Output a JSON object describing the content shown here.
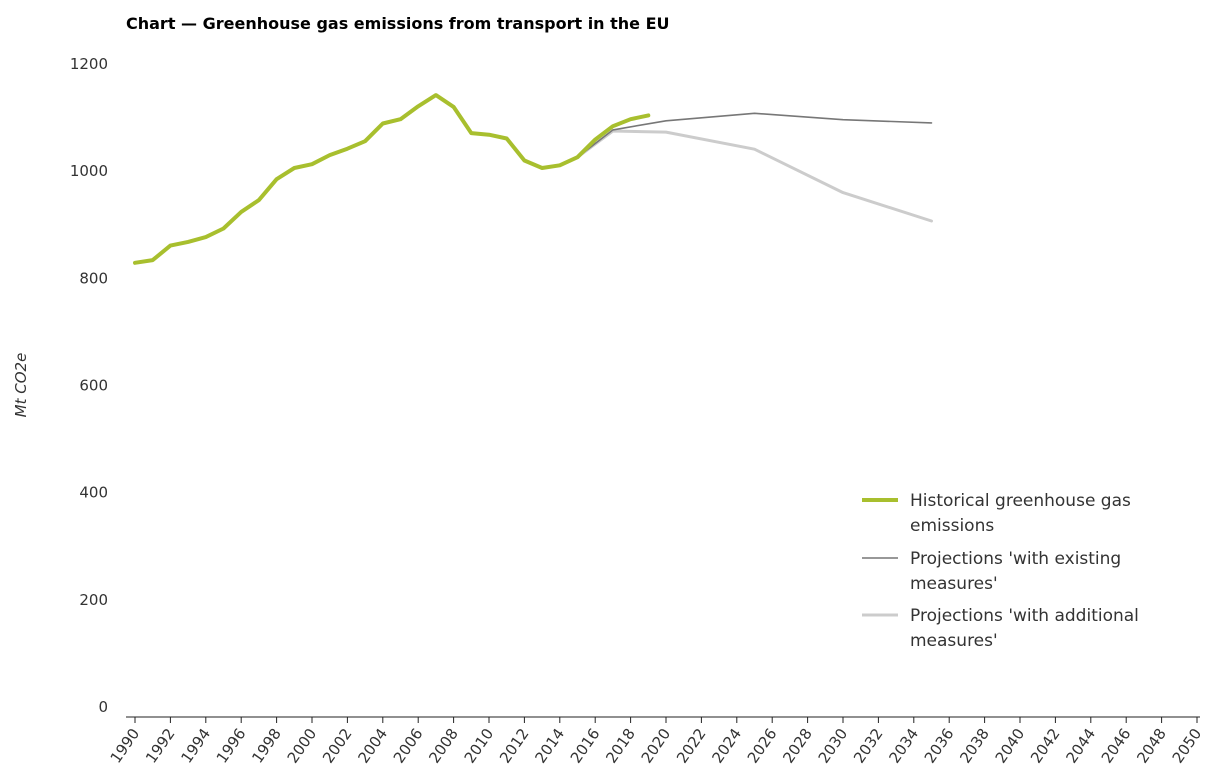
{
  "title": "Chart — Greenhouse gas emissions from transport in the EU",
  "chart_data": {
    "type": "line",
    "title": "Chart — Greenhouse gas emissions from transport in the EU",
    "xlabel": "",
    "ylabel": "Mt CO2e",
    "xlim": [
      1990,
      2050
    ],
    "ylim": [
      0,
      1200
    ],
    "y_ticks": [
      0,
      200,
      400,
      600,
      800,
      1000,
      1200
    ],
    "x_ticks": [
      "1990",
      "1992",
      "1994",
      "1996",
      "1998",
      "2000",
      "2002",
      "2004",
      "2006",
      "2008",
      "2010",
      "2012",
      "2014",
      "2016",
      "2018",
      "2020",
      "2022",
      "2024",
      "2026",
      "2028",
      "2030",
      "2032",
      "2034",
      "2036",
      "2038",
      "2040",
      "2042",
      "2044",
      "2046",
      "2048",
      "2050"
    ],
    "grid": false,
    "legend_position": "bottom-right",
    "series": [
      {
        "name": "Historical greenhouse gas emissions",
        "color": "#a8bf2e",
        "x": [
          1990,
          1991,
          1992,
          1993,
          1994,
          1995,
          1996,
          1997,
          1998,
          1999,
          2000,
          2001,
          2002,
          2003,
          2004,
          2005,
          2006,
          2007,
          2008,
          2009,
          2010,
          2011,
          2012,
          2013,
          2014,
          2015,
          2016,
          2017,
          2018,
          2019
        ],
        "y": [
          829,
          834,
          861,
          868,
          877,
          893,
          924,
          946,
          985,
          1006,
          1013,
          1030,
          1042,
          1056,
          1089,
          1097,
          1121,
          1142,
          1120,
          1071,
          1068,
          1061,
          1020,
          1006,
          1011,
          1026,
          1059,
          1084,
          1097,
          1104
        ]
      },
      {
        "name": "Projections 'with existing measures'",
        "color": "#777777",
        "x": [
          2015,
          2017,
          2020,
          2025,
          2030,
          2035
        ],
        "y": [
          1026,
          1077,
          1094,
          1108,
          1096,
          1090
        ]
      },
      {
        "name": "Projections 'with additional measures'",
        "color": "#cccccc",
        "x": [
          2015,
          2017,
          2020,
          2025,
          2030,
          2035
        ],
        "y": [
          1026,
          1075,
          1073,
          1041,
          960,
          907
        ]
      }
    ]
  },
  "legend": [
    {
      "lines": [
        "Historical greenhouse gas",
        "emissions"
      ]
    },
    {
      "lines": [
        "Projections 'with existing",
        "measures'"
      ]
    },
    {
      "lines": [
        "Projections 'with additional",
        "measures'"
      ]
    }
  ]
}
